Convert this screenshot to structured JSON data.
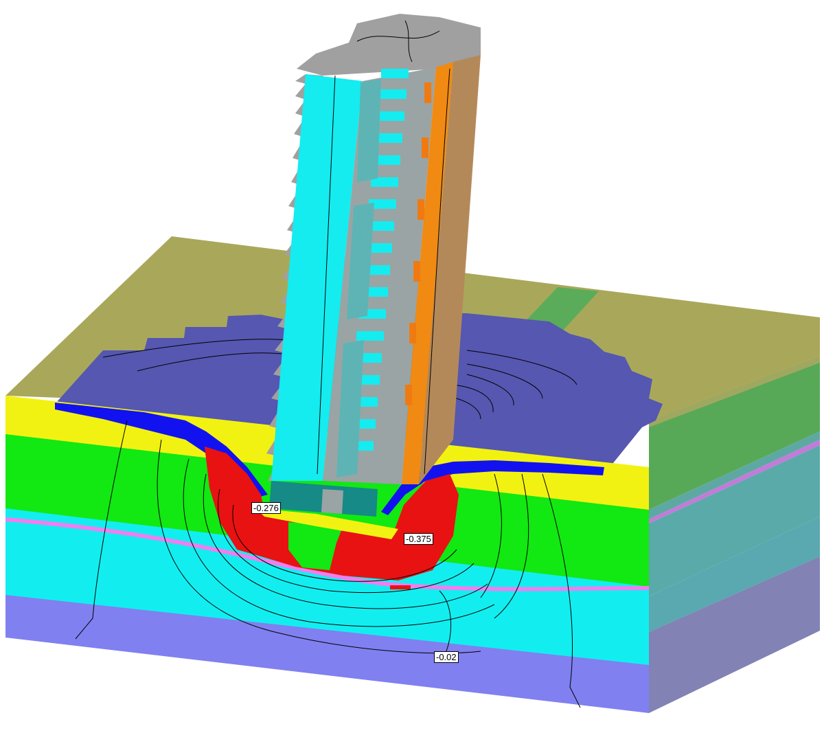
{
  "contour_labels": [
    "-0.276",
    "-0.375",
    "-0.02"
  ],
  "colors": {
    "ground_surface": "#a9a85a",
    "surface_strip": "#5aac5a",
    "settlement_zone": "#5557b0",
    "layer_blue": "#1212f0",
    "layer_yellow": "#f2f212",
    "layer_green": "#12e812",
    "layer_red": "#e81212",
    "layer_cyan": "#12eef0",
    "layer_pink": "#f07ef0",
    "layer_violet": "#8080f0",
    "building_cyan": "#14ecf0",
    "building_grey": "#a0a0a0",
    "building_orange": "#f08a12",
    "building_brown": "#b4895a",
    "foundation_teal": "#168a86"
  }
}
